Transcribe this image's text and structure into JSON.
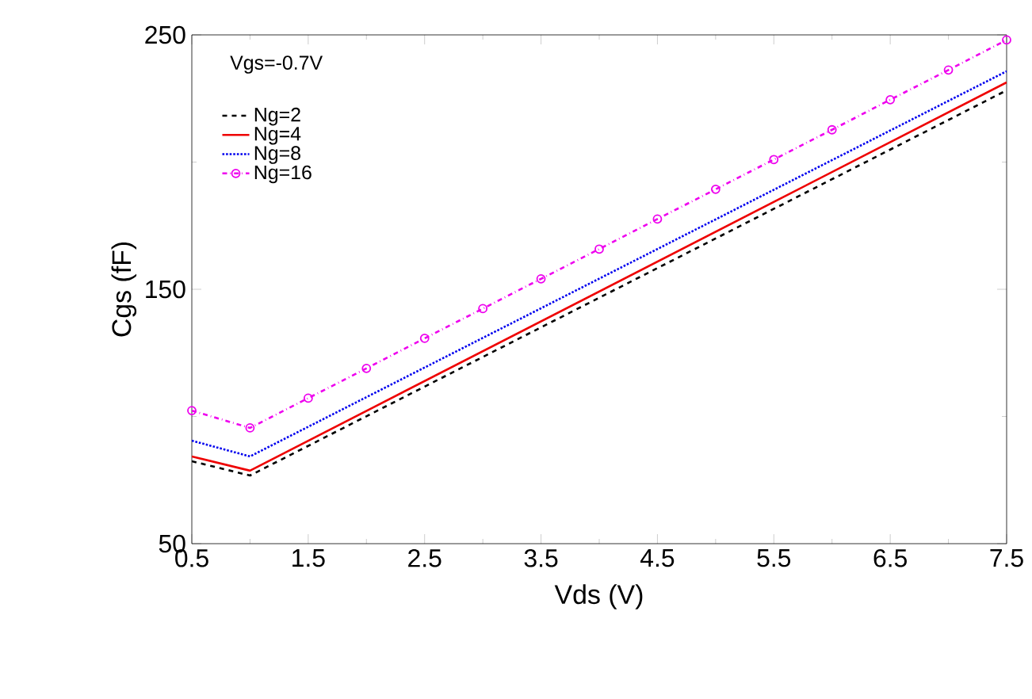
{
  "chart_data": {
    "type": "line",
    "xlabel": "Vds (V)",
    "ylabel": "Cgs (fF)",
    "legend_title": "Vgs=-0.7V",
    "legend": "top left",
    "grid": false,
    "xlim": [
      0.5,
      7.5
    ],
    "xticks": [
      0.5,
      1.5,
      2.5,
      3.5,
      4.5,
      5.5,
      6.5,
      7.5
    ],
    "ylim": [
      50,
      250
    ],
    "yticks": [
      50,
      150,
      250
    ],
    "series": [
      {
        "name": "Ng=2",
        "color": "#000000",
        "line_style": "dashed",
        "x": [
          0.5,
          1.0,
          7.5
        ],
        "values": [
          82.4,
          76.8,
          228.2
        ]
      },
      {
        "name": "Ng=4",
        "color": "#ee0000",
        "line_style": "solid",
        "x": [
          0.5,
          1.0,
          7.5
        ],
        "values": [
          84.3,
          78.7,
          231.3
        ]
      },
      {
        "name": "Ng=8",
        "color": "#0000ee",
        "line_style": "dotted",
        "x": [
          0.5,
          1.0,
          7.5
        ],
        "values": [
          90.5,
          84.3,
          235.7
        ]
      },
      {
        "name": "Ng=16",
        "color": "#ee00ee",
        "line_style": "dashdot",
        "marker": "circle",
        "x": [
          0.5,
          1.0,
          1.5,
          2.0,
          2.5,
          3.0,
          3.5,
          4.0,
          4.5,
          5.0,
          5.5,
          6.0,
          6.5,
          7.0,
          7.5
        ],
        "values": [
          102.3,
          95.5,
          107.2,
          118.9,
          130.7,
          142.4,
          154.1,
          165.8,
          177.6,
          189.3,
          201.0,
          212.7,
          224.5,
          236.2,
          248.0
        ]
      }
    ]
  }
}
